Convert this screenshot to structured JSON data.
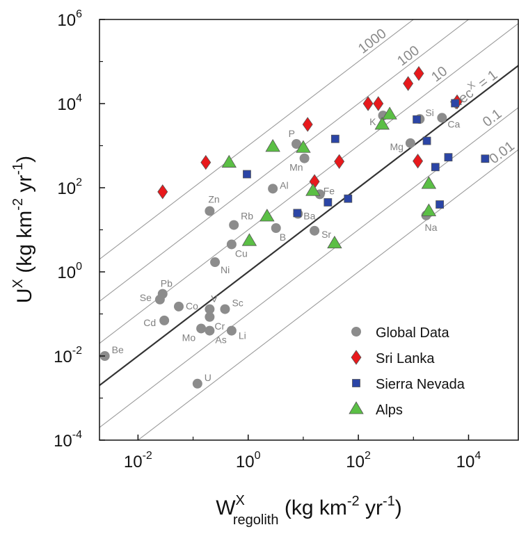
{
  "chart_data": {
    "type": "scatter",
    "title": "",
    "xlabel": {
      "main": "W",
      "sup": "X",
      "sub": "regolith",
      "unit_pre": " (kg km",
      "unit_sup1": "-2",
      "unit_mid": " yr",
      "unit_sup2": "-1",
      "unit_post": ")"
    },
    "ylabel": {
      "main": "U",
      "sup": "X",
      "unit_pre": " (kg km",
      "unit_sup1": "-2",
      "unit_mid": " yr",
      "unit_sup2": "-1",
      "unit_post": ")"
    },
    "x_scale": "log",
    "y_scale": "log",
    "xlim": [
      0.002,
      80000
    ],
    "ylim": [
      0.0001,
      1000000
    ],
    "x_ticks": [
      {
        "value": 0.01,
        "base": "10",
        "exp": "-2"
      },
      {
        "value": 1,
        "base": "10",
        "exp": "0"
      },
      {
        "value": 100,
        "base": "10",
        "exp": "2"
      },
      {
        "value": 10000,
        "base": "10",
        "exp": "4"
      }
    ],
    "y_ticks": [
      {
        "value": 0.0001,
        "base": "10",
        "exp": "-4"
      },
      {
        "value": 0.01,
        "base": "10",
        "exp": "-2"
      },
      {
        "value": 1,
        "base": "10",
        "exp": "0"
      },
      {
        "value": 100,
        "base": "10",
        "exp": "2"
      },
      {
        "value": 10000,
        "base": "10",
        "exp": "4"
      },
      {
        "value": 1000000,
        "base": "10",
        "exp": "6"
      }
    ],
    "reference_lines": [
      {
        "ratio": 1000,
        "label": "1000"
      },
      {
        "ratio": 100,
        "label": "100"
      },
      {
        "ratio": 10,
        "label": "10"
      },
      {
        "ratio": 1,
        "label_main": "Rec",
        "label_sup": "X",
        "label_post": " = 1"
      },
      {
        "ratio": 0.1,
        "label": "0.1"
      },
      {
        "ratio": 0.01,
        "label": "0.01"
      }
    ],
    "legend": {
      "placement": "bottom-right",
      "entries": [
        {
          "name": "Global Data",
          "marker": "circle",
          "color": "#8c8c8c"
        },
        {
          "name": "Sri Lanka",
          "marker": "diamond",
          "color": "#e8191c"
        },
        {
          "name": "Sierra Nevada",
          "marker": "square",
          "color": "#2b45a6"
        },
        {
          "name": "Alps",
          "marker": "triangle",
          "color": "#5bbf45"
        }
      ]
    },
    "series": [
      {
        "name": "Global Data",
        "marker": "circle",
        "color": "#8c8c8c",
        "points": [
          {
            "label": "Be",
            "x": 0.0025,
            "y": 0.01
          },
          {
            "label": "U",
            "x": 0.12,
            "y": 0.0022
          },
          {
            "label": "Pb",
            "x": 0.028,
            "y": 0.3
          },
          {
            "label": "Se",
            "x": 0.025,
            "y": 0.22
          },
          {
            "label": "Cd",
            "x": 0.03,
            "y": 0.07
          },
          {
            "label": "Co",
            "x": 0.055,
            "y": 0.15
          },
          {
            "label": "V",
            "x": 0.2,
            "y": 0.13
          },
          {
            "label": "Sc",
            "x": 0.38,
            "y": 0.13
          },
          {
            "label": "Cr",
            "x": 0.2,
            "y": 0.085
          },
          {
            "label": "Mo",
            "x": 0.14,
            "y": 0.045
          },
          {
            "label": "As",
            "x": 0.2,
            "y": 0.04
          },
          {
            "label": "Li",
            "x": 0.5,
            "y": 0.04
          },
          {
            "label": "Zn",
            "x": 0.2,
            "y": 28
          },
          {
            "label": "Rb",
            "x": 0.55,
            "y": 13
          },
          {
            "label": "Cu",
            "x": 0.5,
            "y": 4.5
          },
          {
            "label": "Ni",
            "x": 0.25,
            "y": 1.7
          },
          {
            "label": "B",
            "x": 3.2,
            "y": 11
          },
          {
            "label": "Al",
            "x": 2.8,
            "y": 95
          },
          {
            "label": "P",
            "x": 7.5,
            "y": 1100
          },
          {
            "label": "Mn",
            "x": 10.5,
            "y": 500
          },
          {
            "label": "Fe",
            "x": 20,
            "y": 70
          },
          {
            "label": "Ba",
            "x": 8,
            "y": 24
          },
          {
            "label": "Sr",
            "x": 16,
            "y": 9.5
          },
          {
            "label": "K",
            "x": 280,
            "y": 5200
          },
          {
            "label": "Si",
            "x": 1300,
            "y": 4300
          },
          {
            "label": "Mg",
            "x": 880,
            "y": 1150
          },
          {
            "label": "Ca",
            "x": 3300,
            "y": 4600
          },
          {
            "label": "Na",
            "x": 1700,
            "y": 22
          }
        ]
      },
      {
        "name": "Sri Lanka",
        "marker": "diamond",
        "color": "#e8191c",
        "points": [
          {
            "x": 0.028,
            "y": 80
          },
          {
            "x": 0.17,
            "y": 400
          },
          {
            "x": 12,
            "y": 3200
          },
          {
            "x": 16,
            "y": 140
          },
          {
            "x": 45,
            "y": 420
          },
          {
            "x": 150,
            "y": 10000
          },
          {
            "x": 230,
            "y": 10000
          },
          {
            "x": 800,
            "y": 30000
          },
          {
            "x": 1250,
            "y": 52000
          },
          {
            "x": 6200,
            "y": 11000
          },
          {
            "x": 1200,
            "y": 430
          }
        ]
      },
      {
        "name": "Sierra Nevada",
        "marker": "square",
        "color": "#2b45a6",
        "points": [
          {
            "x": 0.95,
            "y": 210
          },
          {
            "x": 7.8,
            "y": 25
          },
          {
            "x": 28,
            "y": 45
          },
          {
            "x": 38,
            "y": 1450
          },
          {
            "x": 65,
            "y": 55
          },
          {
            "x": 1150,
            "y": 4200
          },
          {
            "x": 1750,
            "y": 1300
          },
          {
            "x": 2500,
            "y": 310
          },
          {
            "x": 4300,
            "y": 530
          },
          {
            "x": 5700,
            "y": 10200
          },
          {
            "x": 20000,
            "y": 490
          },
          {
            "x": 3000,
            "y": 40
          }
        ]
      },
      {
        "name": "Alps",
        "marker": "triangle",
        "color": "#5bbf45",
        "points": [
          {
            "x": 0.45,
            "y": 400
          },
          {
            "x": 2.8,
            "y": 950
          },
          {
            "x": 10,
            "y": 900
          },
          {
            "x": 2.2,
            "y": 21
          },
          {
            "x": 1.05,
            "y": 5.5
          },
          {
            "x": 15,
            "y": 85
          },
          {
            "x": 37,
            "y": 4.8
          },
          {
            "x": 270,
            "y": 3200
          },
          {
            "x": 370,
            "y": 5600
          },
          {
            "x": 1900,
            "y": 125
          },
          {
            "x": 1900,
            "y": 28
          }
        ]
      }
    ]
  }
}
